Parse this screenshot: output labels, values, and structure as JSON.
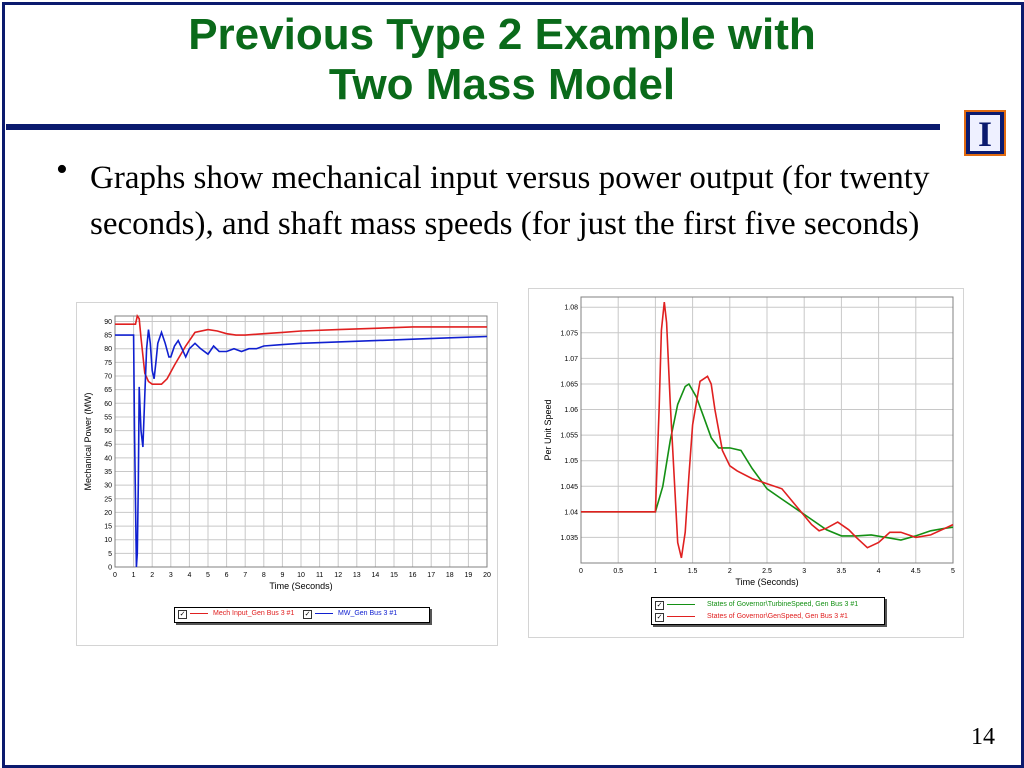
{
  "slide": {
    "title_line1": "Previous Type 2 Example with",
    "title_line2": "Two Mass Model",
    "bullet": "Graphs show mechanical input versus power output (for twenty seconds), and shaft mass speeds (for just the first five seconds)",
    "page_number": "14",
    "logo_glyph": "I"
  },
  "colors": {
    "title": "#0a6a1a",
    "rule": "#0b1a6e",
    "red": "#e02020",
    "blue": "#1020d0",
    "green": "#149014"
  },
  "chart_data": [
    {
      "type": "line",
      "title": "",
      "xlabel": "Time (Seconds)",
      "ylabel": "Mechanical Power (MW)",
      "xlim": [
        0,
        20
      ],
      "ylim": [
        0,
        92
      ],
      "xticks": [
        0,
        1,
        2,
        3,
        4,
        5,
        6,
        7,
        8,
        9,
        10,
        11,
        12,
        13,
        14,
        15,
        16,
        17,
        18,
        19,
        20
      ],
      "yticks": [
        0,
        5,
        10,
        15,
        20,
        25,
        30,
        35,
        40,
        45,
        50,
        55,
        60,
        65,
        70,
        75,
        80,
        85,
        90
      ],
      "grid": true,
      "legend_position": "bottom",
      "series": [
        {
          "name": "Mech Input_Gen Bus 3 #1",
          "color": "#e02020",
          "x": [
            0,
            1.0,
            1.1,
            1.2,
            1.3,
            1.4,
            1.6,
            1.8,
            2.0,
            2.5,
            2.8,
            3.2,
            3.8,
            4.3,
            5.0,
            5.5,
            6.0,
            6.5,
            7.0,
            8.0,
            9.0,
            10.0,
            12.0,
            14.0,
            16.0,
            18.0,
            20.0
          ],
          "y": [
            89,
            89,
            89,
            92,
            91,
            84,
            71,
            68,
            67,
            67,
            69,
            74,
            81,
            86,
            87,
            86.5,
            85.5,
            85,
            85,
            85.5,
            86,
            86.5,
            87,
            87.5,
            88,
            88,
            88
          ]
        },
        {
          "name": "MW_Gen Bus 3 #1",
          "color": "#1020d0",
          "x": [
            0,
            0.95,
            1.0,
            1.05,
            1.15,
            1.2,
            1.25,
            1.3,
            1.4,
            1.5,
            1.6,
            1.7,
            1.8,
            1.9,
            2.0,
            2.1,
            2.2,
            2.3,
            2.5,
            2.7,
            2.9,
            3.0,
            3.2,
            3.4,
            3.6,
            3.8,
            4.0,
            4.3,
            4.6,
            5.0,
            5.3,
            5.6,
            6.0,
            6.4,
            6.8,
            7.2,
            7.6,
            8.0,
            9.0,
            10.0,
            12.0,
            14.0,
            16.0,
            18.0,
            20.0
          ],
          "y": [
            85,
            85,
            85,
            50,
            0,
            5,
            30,
            66,
            50,
            44,
            63,
            80,
            87,
            82,
            72,
            69,
            75,
            82,
            86,
            82,
            77,
            77,
            81,
            83,
            80,
            77,
            80,
            82,
            80,
            78,
            81,
            79,
            79,
            80,
            79,
            80,
            80,
            81,
            81.5,
            82,
            82.5,
            83,
            83.5,
            84,
            84.5
          ]
        }
      ]
    },
    {
      "type": "line",
      "title": "",
      "xlabel": "Time (Seconds)",
      "ylabel": "Per Unit Speed",
      "xlim": [
        0,
        5
      ],
      "ylim": [
        1.03,
        1.082
      ],
      "xticks": [
        0,
        0.5,
        1,
        1.5,
        2,
        2.5,
        3,
        3.5,
        4,
        4.5,
        5
      ],
      "xtick_labels": [
        "0",
        "0.5",
        "1",
        "1.5",
        "2",
        "2.5",
        "3",
        "3.5",
        "4",
        "4.5",
        "5"
      ],
      "yticks": [
        1.035,
        1.04,
        1.045,
        1.05,
        1.055,
        1.06,
        1.065,
        1.07,
        1.075,
        1.08
      ],
      "ytick_labels": [
        "1.035",
        "1.04",
        "1.045",
        "1.05",
        "1.055",
        "1.06",
        "1.065",
        "1.07",
        "1.075",
        "1.08"
      ],
      "grid": true,
      "legend_position": "bottom",
      "series": [
        {
          "name": "States of Governor\\TurbineSpeed, Gen Bus 3 #1",
          "color": "#149014",
          "x": [
            0,
            1.0,
            1.1,
            1.2,
            1.3,
            1.4,
            1.45,
            1.55,
            1.65,
            1.75,
            1.85,
            2.0,
            2.15,
            2.3,
            2.5,
            2.7,
            2.9,
            3.1,
            3.3,
            3.5,
            3.7,
            3.9,
            4.1,
            4.3,
            4.5,
            4.7,
            4.9,
            5.0
          ],
          "y": [
            1.04,
            1.04,
            1.045,
            1.054,
            1.061,
            1.0645,
            1.065,
            1.0625,
            1.0585,
            1.0545,
            1.0525,
            1.0525,
            1.052,
            1.0485,
            1.0445,
            1.0425,
            1.0405,
            1.0385,
            1.0365,
            1.0353,
            1.0353,
            1.0355,
            1.035,
            1.0345,
            1.0353,
            1.0363,
            1.0368,
            1.037
          ]
        },
        {
          "name": "States of Governor\\GenSpeed, Gen Bus 3 #1",
          "color": "#e02020",
          "x": [
            0,
            1.0,
            1.05,
            1.08,
            1.12,
            1.15,
            1.2,
            1.3,
            1.35,
            1.4,
            1.45,
            1.5,
            1.6,
            1.7,
            1.75,
            1.8,
            1.9,
            2.0,
            2.1,
            2.3,
            2.5,
            2.7,
            2.9,
            3.1,
            3.2,
            3.3,
            3.45,
            3.6,
            3.7,
            3.85,
            4.0,
            4.15,
            4.3,
            4.5,
            4.7,
            4.85,
            5.0
          ],
          "y": [
            1.04,
            1.04,
            1.06,
            1.0755,
            1.081,
            1.077,
            1.061,
            1.034,
            1.031,
            1.036,
            1.047,
            1.057,
            1.0655,
            1.0665,
            1.065,
            1.06,
            1.052,
            1.049,
            1.048,
            1.0465,
            1.0455,
            1.0445,
            1.041,
            1.0375,
            1.0363,
            1.0368,
            1.038,
            1.0365,
            1.035,
            1.033,
            1.034,
            1.036,
            1.036,
            1.035,
            1.0355,
            1.0365,
            1.0375
          ]
        }
      ]
    }
  ]
}
